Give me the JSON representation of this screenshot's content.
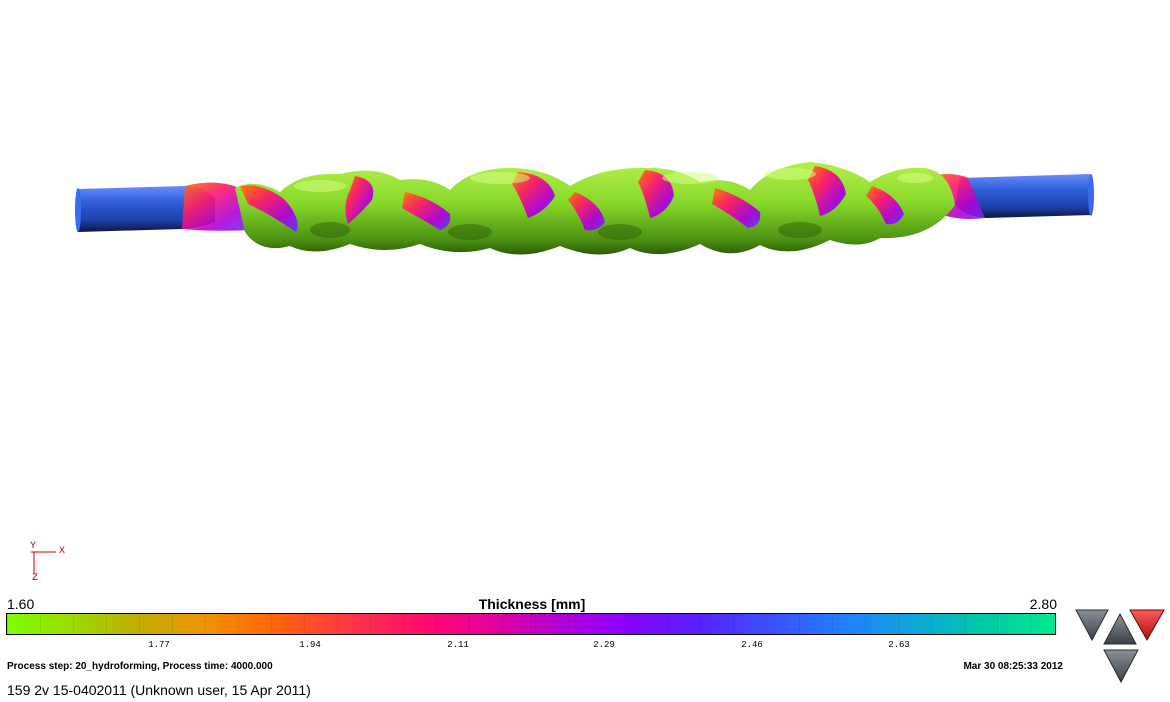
{
  "legend": {
    "title": "Thickness [mm]",
    "min_label": "1.60",
    "max_label": "2.80",
    "ticks": [
      "1.77",
      "1.94",
      "2.11",
      "2.29",
      "2.46",
      "2.63"
    ]
  },
  "status": {
    "process": "Process step: 20_hydroforming, Process time: 4000.000",
    "date": "Mar 30 08:25:33 2012"
  },
  "footer": {
    "text": "159 2v 15-0402011 (Unknown user, 15 Apr 2011)"
  },
  "triad": {
    "y": "Y",
    "x": "X",
    "z": "Z"
  },
  "icons": {
    "nav_left": "view-rotate-left-icon",
    "nav_up": "view-rotate-up-icon",
    "nav_right": "view-rotate-right-icon",
    "nav_down": "view-rotate-down-icon"
  },
  "colors": {
    "tube_end": "#2f5fd8",
    "tube_body": "#86d82a",
    "nav_active": "#d92a2a",
    "nav_default": "#5a5f66"
  }
}
